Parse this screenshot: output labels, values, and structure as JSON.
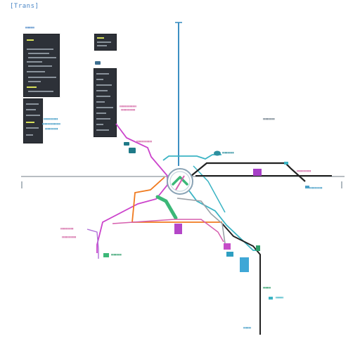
{
  "window": {
    "title": "[Trans]"
  },
  "colors": {
    "orange": "#f07a1e",
    "magenta": "#cc44cc",
    "teal": "#3bb4c4",
    "blue": "#3d8fc2",
    "black": "#222222",
    "green": "#3cb878",
    "violet": "#b070d8",
    "gray": "#9aa0a6",
    "pink": "#d65fae",
    "purple_block": "#9b3bbf",
    "cyan_block": "#3fa7d6",
    "green_label": "#2e9e6a"
  },
  "nodes": [
    {
      "id": "teal-chip",
      "color": "#1f7a88"
    },
    {
      "id": "blue-chip",
      "color": "#3d6f90"
    },
    {
      "id": "purple-top",
      "color": "#a63fc7"
    },
    {
      "id": "purple-mid",
      "color": "#b446c8"
    },
    {
      "id": "pink-small",
      "color": "#c64cc8"
    },
    {
      "id": "cyan-small",
      "color": "#2e9fc2"
    },
    {
      "id": "cyan-tall",
      "color": "#3fa7d6"
    },
    {
      "id": "green-chip",
      "color": "#3cb878"
    },
    {
      "id": "teal-chip-2",
      "color": "#27a0b6"
    },
    {
      "id": "teal-oval",
      "color": "#2d8f9f"
    }
  ]
}
